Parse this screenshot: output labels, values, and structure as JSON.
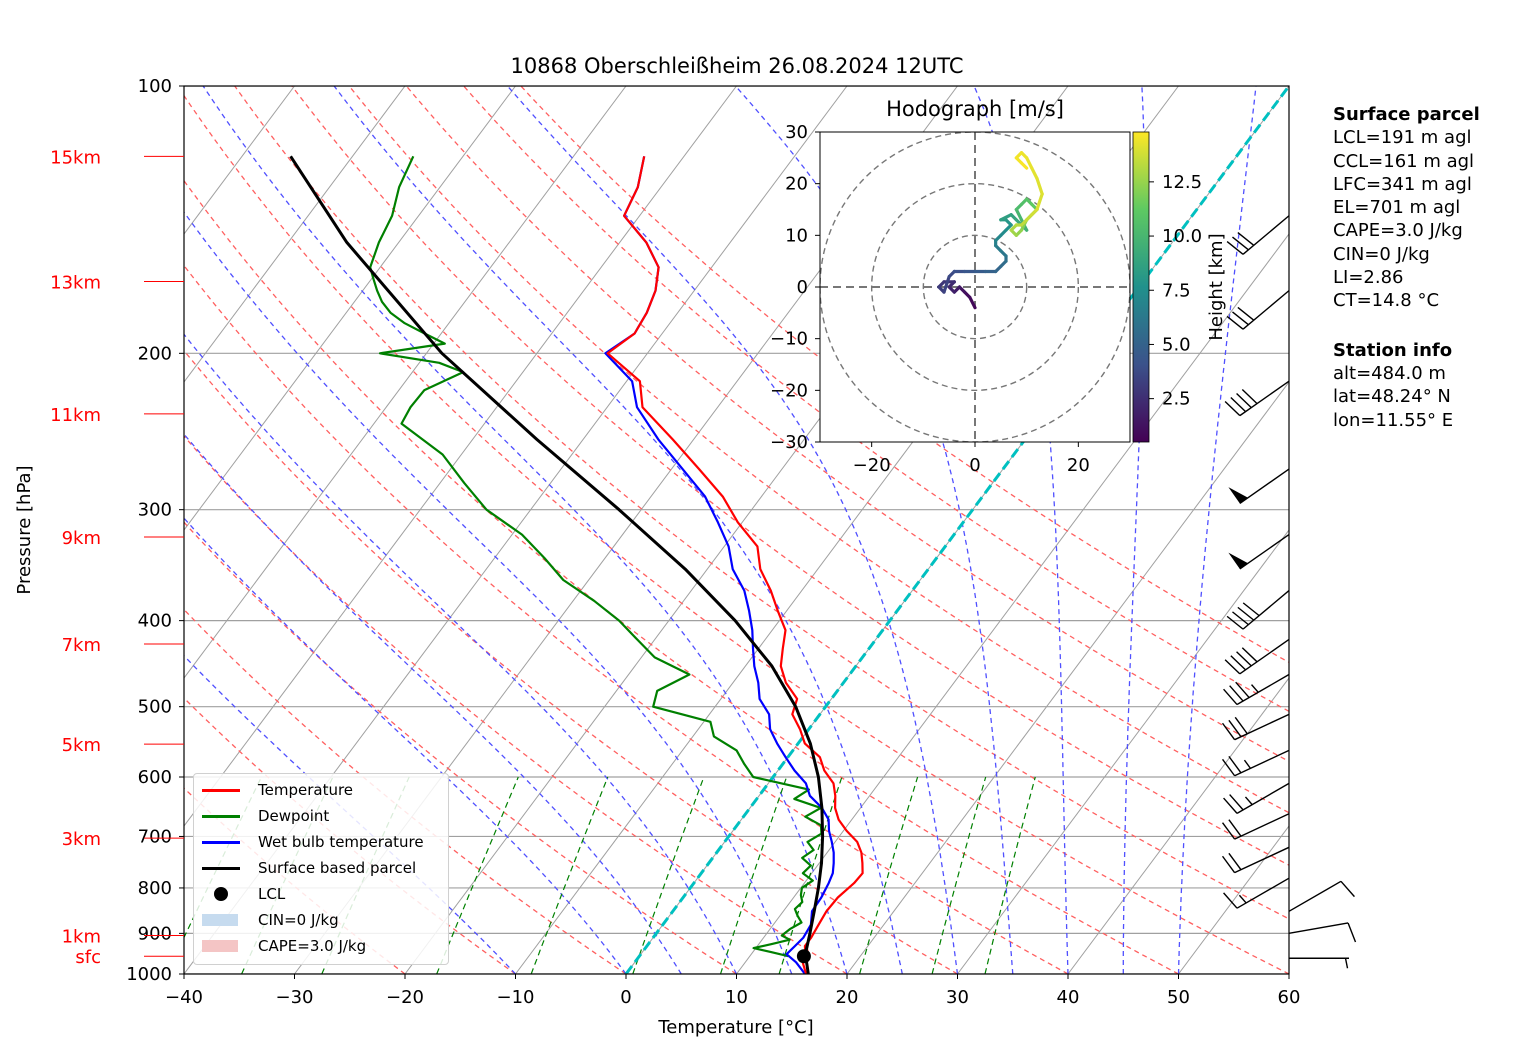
{
  "chart_data": {
    "type": "line",
    "title": "10868 Oberschleißheim 26.08.2024 12UTC",
    "xlabel": "Temperature [°C]",
    "ylabel": "Pressure [hPa]",
    "xlim": [
      -40,
      60
    ],
    "ylim": [
      1000,
      100
    ],
    "y_scale": "log",
    "x_ticks": [
      -40,
      -30,
      -20,
      -10,
      0,
      10,
      20,
      30,
      40,
      50,
      60
    ],
    "y_ticks": [
      1000,
      900,
      800,
      700,
      600,
      500,
      400,
      300,
      200,
      100
    ],
    "x_tick_labels": [
      "−40",
      "−30",
      "−20",
      "−10",
      "0",
      "10",
      "20",
      "30",
      "40",
      "50",
      "60"
    ],
    "height_labels": [
      {
        "label": "sfc",
        "p": 955
      },
      {
        "label": "1km",
        "p": 905
      },
      {
        "label": "3km",
        "p": 703
      },
      {
        "label": "5km",
        "p": 551
      },
      {
        "label": "7km",
        "p": 425
      },
      {
        "label": "9km",
        "p": 322
      },
      {
        "label": "11km",
        "p": 234
      },
      {
        "label": "13km",
        "p": 166
      },
      {
        "label": "15km",
        "p": 120
      }
    ],
    "grid": true,
    "legend_position": "lower-left",
    "series": [
      {
        "name": "Temperature",
        "color": "#ff0000",
        "p": [
          1000,
          970,
          950,
          930,
          910,
          880,
          850,
          820,
          790,
          770,
          750,
          730,
          710,
          690,
          670,
          650,
          630,
          610,
          590,
          570,
          550,
          530,
          510,
          490,
          470,
          450,
          430,
          410,
          390,
          370,
          350,
          330,
          310,
          290,
          270,
          250,
          230,
          215,
          200,
          190,
          180,
          170,
          160,
          150,
          140,
          130,
          120
        ],
        "t": [
          16.3,
          15.2,
          14.9,
          14.3,
          14.3,
          14.1,
          13.9,
          14.0,
          14.5,
          14.6,
          13.9,
          13.1,
          12.0,
          10.3,
          8.8,
          7.7,
          6.9,
          5.9,
          4.2,
          2.9,
          0.6,
          -0.8,
          -2.5,
          -3.1,
          -5.2,
          -6.8,
          -7.8,
          -8.8,
          -10.8,
          -12.8,
          -15.2,
          -17.0,
          -20.4,
          -23.5,
          -27.5,
          -31.9,
          -36.8,
          -38.8,
          -43.6,
          -42.5,
          -42.8,
          -43.5,
          -44.8,
          -47.6,
          -51.4,
          -52.1,
          -53.6
        ]
      },
      {
        "name": "Dewpoint",
        "color": "#008000",
        "p": [
          955,
          945,
          935,
          925,
          915,
          905,
          890,
          875,
          860,
          845,
          830,
          815,
          800,
          785,
          770,
          755,
          740,
          725,
          710,
          695,
          680,
          665,
          650,
          635,
          620,
          600,
          580,
          560,
          540,
          520,
          500,
          480,
          460,
          440,
          420,
          400,
          380,
          360,
          340,
          320,
          300,
          280,
          260,
          240,
          230,
          220,
          210,
          205,
          200,
          195,
          190,
          185,
          180,
          175,
          170,
          165,
          160,
          150,
          140,
          130,
          120
        ],
        "t": [
          13.5,
          11.7,
          9.8,
          11.2,
          12.5,
          11.5,
          11.8,
          12.4,
          11.6,
          10.9,
          11.1,
          10.5,
          10.1,
          10.6,
          9.2,
          9.4,
          8.1,
          8.6,
          7.5,
          8.2,
          7.6,
          5.6,
          6.4,
          3.4,
          4.1,
          -1.8,
          -3.5,
          -5.1,
          -8.1,
          -9.4,
          -15.6,
          -16.3,
          -14.5,
          -18.8,
          -21.6,
          -24.5,
          -28.1,
          -32.3,
          -35.5,
          -39.1,
          -44.0,
          -47.8,
          -51.7,
          -57.5,
          -57.8,
          -57.7,
          -55.4,
          -58.2,
          -64.2,
          -59.0,
          -61.5,
          -64.0,
          -66.0,
          -67.5,
          -68.7,
          -69.8,
          -70.9,
          -71.8,
          -72.4,
          -73.7,
          -74.5
        ]
      },
      {
        "name": "Wet bulb temperature",
        "color": "#0000ff",
        "p": [
          1000,
          970,
          950,
          930,
          910,
          880,
          850,
          820,
          790,
          770,
          750,
          730,
          710,
          690,
          670,
          650,
          630,
          610,
          590,
          570,
          550,
          530,
          510,
          490,
          470,
          450,
          430,
          410,
          390,
          370,
          350,
          330,
          310,
          290,
          270,
          250,
          230,
          215,
          200,
          190,
          180,
          170,
          160,
          150,
          140,
          130,
          120
        ],
        "t": [
          16.2,
          14.6,
          13.2,
          13.4,
          13.6,
          13.4,
          12.6,
          12.5,
          12.2,
          11.9,
          11.3,
          10.6,
          9.7,
          8.7,
          7.9,
          6.5,
          4.6,
          3.4,
          1.5,
          -0.2,
          -1.9,
          -3.5,
          -4.6,
          -6.5,
          -7.7,
          -9.2,
          -10.5,
          -11.8,
          -13.4,
          -15.2,
          -17.7,
          -19.6,
          -22.2,
          -25.1,
          -29.0,
          -33.2,
          -37.3,
          -39.5,
          -43.8,
          -42.5,
          -42.8,
          -43.5,
          -44.8,
          -47.6,
          -51.4,
          -52.1,
          -53.6
        ]
      },
      {
        "name": "Surface based parcel",
        "color": "#000000",
        "p": [
          1000,
          950,
          900,
          850,
          800,
          750,
          700,
          650,
          600,
          550,
          500,
          450,
          400,
          350,
          300,
          250,
          200,
          150,
          120
        ],
        "t": [
          16.5,
          14.9,
          13.9,
          12.8,
          11.6,
          10.2,
          8.5,
          6.5,
          4.1,
          1.1,
          -2.7,
          -7.6,
          -14.0,
          -22.0,
          -32.0,
          -44.2,
          -58.6,
          -74.7,
          -85.6
        ]
      }
    ],
    "lcl": {
      "label": "LCL",
      "t": 14.9,
      "p": 955
    },
    "cin_label": "CIN=0 J/kg",
    "cape_label": "CAPE=3.0 J/kg",
    "reference_line": {
      "color": "#00c0c0",
      "p0": 1000,
      "t0": 0,
      "p1": 100,
      "t1": 60
    },
    "isotherms_step": 10,
    "dry_adiabats_theta_c": [
      -20,
      -10,
      0,
      10,
      20,
      30,
      40,
      50,
      60,
      70,
      80,
      90,
      100,
      110,
      120
    ],
    "moist_adiabats_tsfc_c": [
      -10,
      0,
      5,
      10,
      15,
      20,
      25,
      30,
      35,
      40,
      45,
      50
    ],
    "mixing_ratio_gkg": [
      0.1,
      0.2,
      0.4,
      1,
      2,
      4,
      7,
      10,
      16,
      24,
      32
    ],
    "wind_barbs": [
      {
        "p": 960,
        "speed_kt": 5,
        "dir": 90
      },
      {
        "p": 900,
        "speed_kt": 10,
        "dir": 80
      },
      {
        "p": 850,
        "speed_kt": 10,
        "dir": 60
      },
      {
        "p": 780,
        "speed_kt": 15,
        "dir": 240
      },
      {
        "p": 720,
        "speed_kt": 20,
        "dir": 245
      },
      {
        "p": 660,
        "speed_kt": 20,
        "dir": 245
      },
      {
        "p": 610,
        "speed_kt": 25,
        "dir": 240
      },
      {
        "p": 560,
        "speed_kt": 25,
        "dir": 245
      },
      {
        "p": 510,
        "speed_kt": 30,
        "dir": 245
      },
      {
        "p": 460,
        "speed_kt": 35,
        "dir": 240
      },
      {
        "p": 420,
        "speed_kt": 40,
        "dir": 235
      },
      {
        "p": 370,
        "speed_kt": 40,
        "dir": 230
      },
      {
        "p": 320,
        "speed_kt": 50,
        "dir": 235
      },
      {
        "p": 270,
        "speed_kt": 50,
        "dir": 235
      },
      {
        "p": 215,
        "speed_kt": 40,
        "dir": 235
      },
      {
        "p": 170,
        "speed_kt": 30,
        "dir": 230
      },
      {
        "p": 140,
        "speed_kt": 30,
        "dir": 230
      }
    ],
    "hodograph": {
      "title": "Hodograph [m/s]",
      "xlim": [
        -30,
        30
      ],
      "ylim": [
        -30,
        30
      ],
      "x_ticks": [
        -20,
        0,
        20
      ],
      "x_tick_labels": [
        "−20",
        "0",
        "20"
      ],
      "y_ticks": [
        30,
        20,
        10,
        0,
        -10,
        -20,
        -30
      ],
      "y_tick_labels": [
        "30",
        "20",
        "10",
        "0",
        "−10",
        "−20",
        "−30"
      ],
      "rings_ms": [
        10,
        20,
        30
      ],
      "colorbar_label": "Height [km]",
      "colorbar_ticks": [
        2.5,
        5.0,
        7.5,
        10.0,
        12.5
      ],
      "colorbar_tick_labels": [
        "2.5",
        "5.0",
        "7.5",
        "10.0",
        "12.5"
      ],
      "colorbar_range": [
        0.5,
        14.8
      ],
      "u": [
        0,
        -1,
        -2,
        -3,
        -4,
        -5,
        -4,
        -6,
        -7,
        -6,
        -5,
        -4,
        -2,
        0,
        2,
        4,
        5,
        6,
        6,
        5,
        4,
        4,
        5,
        6,
        7,
        6,
        5,
        7,
        8,
        9,
        10,
        9,
        8,
        9,
        10,
        11,
        12,
        11,
        10,
        9,
        8,
        7,
        8,
        9,
        10,
        11,
        12,
        13,
        12,
        11,
        10,
        9,
        8,
        9,
        10
      ],
      "v": [
        -4,
        -2,
        -1,
        0,
        -1,
        0,
        1,
        1,
        0,
        -1,
        2,
        3,
        3,
        3,
        3,
        3,
        4,
        5,
        6,
        7,
        8,
        9,
        10,
        11,
        12,
        13,
        13,
        14,
        13,
        12,
        11,
        13,
        15,
        16,
        17,
        16,
        15,
        14,
        13,
        11,
        10,
        11,
        12,
        12,
        13,
        14,
        15,
        18,
        21,
        23,
        25,
        26,
        25,
        24,
        23
      ],
      "height_km": [
        0.5,
        0.8,
        1.0,
        1.3,
        1.6,
        1.9,
        2.2,
        2.5,
        2.8,
        3.1,
        3.4,
        3.7,
        4.0,
        4.3,
        4.6,
        4.9,
        5.2,
        5.5,
        5.8,
        6.1,
        6.4,
        6.7,
        7.0,
        7.3,
        7.6,
        7.9,
        8.2,
        8.5,
        8.8,
        9.1,
        9.4,
        9.7,
        10.0,
        10.3,
        10.6,
        10.9,
        11.2,
        11.5,
        11.8,
        12.1,
        12.4,
        12.7,
        13.0,
        13.2,
        13.4,
        13.6,
        13.8,
        14.0,
        14.1,
        14.2,
        14.3,
        14.4,
        14.5,
        14.6,
        14.7
      ]
    }
  },
  "info": {
    "surface_header": "Surface parcel",
    "surface_lines": [
      "LCL=191 m agl",
      "CCL=161 m agl",
      "LFC=341 m agl",
      "EL=701 m agl",
      "CAPE=3.0 J/kg",
      "CIN=0 J/kg",
      "LI=2.86",
      "CT=14.8 °C"
    ],
    "station_header": "Station info",
    "station_lines": [
      "alt=484.0 m",
      "lat=48.24° N",
      "lon=11.55° E"
    ]
  },
  "legend": {
    "temperature": "Temperature",
    "dewpoint": "Dewpoint",
    "wetbulb": "Wet bulb temperature",
    "parcel": "Surface based parcel",
    "lcl": "LCL",
    "cin": "CIN=0 J/kg",
    "cape": "CAPE=3.0 J/kg"
  },
  "colors": {
    "temperature": "#ff0000",
    "dewpoint": "#008000",
    "wetbulb": "#0000ff",
    "parcel": "#000000",
    "dry_adiabat": "#ff6060",
    "moist_adiabat": "#5050ff",
    "mixing_ratio": "#008000",
    "isotherm": "#a0a0a0",
    "reference_line": "#00c0c0",
    "cin_patch": "#c6dbef",
    "cape_patch": "#f4c5c5",
    "height_labels": "#ff0000"
  }
}
